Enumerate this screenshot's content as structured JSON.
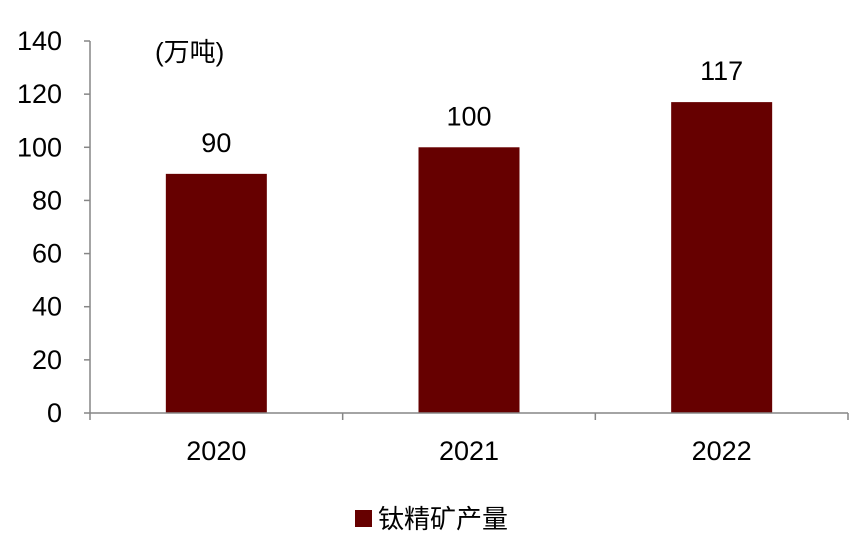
{
  "chart_data": {
    "type": "bar",
    "categories": [
      "2020",
      "2021",
      "2022"
    ],
    "series": [
      {
        "name": "钛精矿产量",
        "values": [
          90,
          100,
          117
        ],
        "color": "#660000"
      }
    ],
    "data_labels": [
      "90",
      "100",
      "117"
    ],
    "ylim": [
      0,
      140
    ],
    "yticks": [
      0,
      20,
      40,
      60,
      80,
      100,
      120,
      140
    ],
    "unit_label": "(万吨)",
    "title": "",
    "xlabel": "",
    "ylabel": "",
    "grid": false,
    "legend_position": "bottom-center",
    "axis_color": "#868686"
  }
}
